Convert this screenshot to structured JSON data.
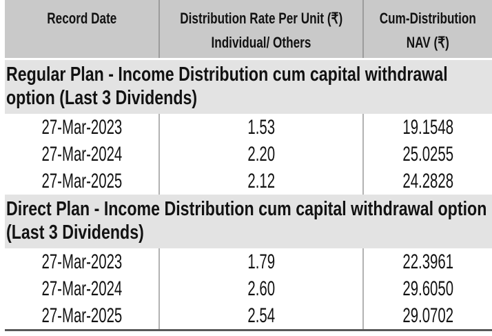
{
  "table": {
    "columns": [
      {
        "header_line1": "Record Date",
        "header_line2": ""
      },
      {
        "header_line1": "Distribution Rate Per Unit (₹)",
        "header_line2": "Individual/ Others"
      },
      {
        "header_line1": "Cum-Distribution",
        "header_line2": "NAV (₹)"
      }
    ],
    "sections": [
      {
        "title": "Regular Plan - Income Distribution cum capital withdrawal option (Last 3 Dividends)",
        "rows": [
          {
            "record_date": "27-Mar-2023",
            "rate": "1.53",
            "nav": "19.1548"
          },
          {
            "record_date": "27-Mar-2024",
            "rate": "2.20",
            "nav": "25.0255"
          },
          {
            "record_date": "27-Mar-2025",
            "rate": "2.12",
            "nav": "24.2828"
          }
        ]
      },
      {
        "title": "Direct Plan - Income Distribution cum capital withdrawal option (Last 3 Dividends)",
        "rows": [
          {
            "record_date": "27-Mar-2023",
            "rate": "1.79",
            "nav": "22.3961"
          },
          {
            "record_date": "27-Mar-2024",
            "rate": "2.60",
            "nav": "29.6050"
          },
          {
            "record_date": "27-Mar-2025",
            "rate": "2.54",
            "nav": "29.0702"
          }
        ]
      }
    ],
    "colors": {
      "header_bg": "#c9c9c9",
      "section_bg": "#e3e3e3",
      "divider": "#9c9c9c",
      "body_divider": "#b2b2b2",
      "bottom_border": "#585858",
      "text": "#121212"
    }
  }
}
